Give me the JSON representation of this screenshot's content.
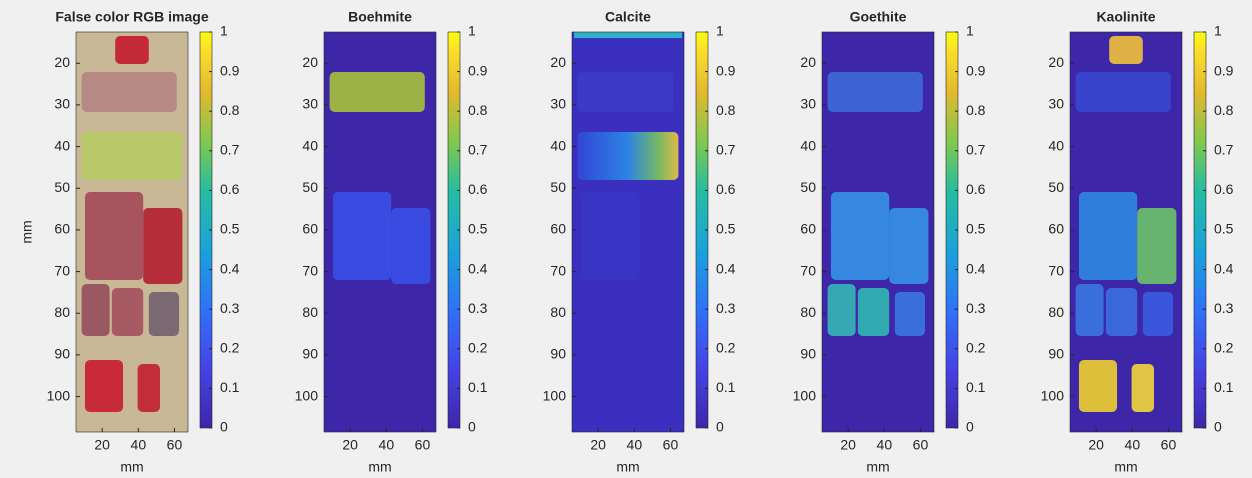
{
  "chart_data": [
    {
      "type": "image",
      "title": "False color RGB image",
      "xlabel": "mm",
      "ylabel": "mm",
      "xlim": [
        5.5,
        67.5
      ],
      "ylim": [
        12.5,
        108.5
      ],
      "xticks": [
        20,
        40,
        60
      ],
      "yticks": [
        20,
        30,
        40,
        50,
        60,
        70,
        80,
        90,
        100
      ],
      "clim": [
        0,
        1
      ],
      "cticks": [
        0,
        0.1,
        0.2,
        0.3,
        0.4,
        0.5,
        0.6,
        0.7,
        0.8,
        0.9,
        1
      ]
    },
    {
      "type": "image",
      "title": "Boehmite",
      "xlabel": "mm",
      "xlim": [
        5.5,
        67.5
      ],
      "ylim": [
        12.5,
        108.5
      ],
      "xticks": [
        20,
        40,
        60
      ],
      "yticks": [
        20,
        30,
        40,
        50,
        60,
        70,
        80,
        90,
        100
      ],
      "clim": [
        0,
        1
      ],
      "cticks": [
        0,
        0.1,
        0.2,
        0.3,
        0.4,
        0.5,
        0.6,
        0.7,
        0.8,
        0.9,
        1
      ]
    },
    {
      "type": "image",
      "title": "Calcite",
      "xlabel": "mm",
      "xlim": [
        5.5,
        67.5
      ],
      "ylim": [
        12.5,
        108.5
      ],
      "xticks": [
        20,
        40,
        60
      ],
      "yticks": [
        20,
        30,
        40,
        50,
        60,
        70,
        80,
        90,
        100
      ],
      "clim": [
        0,
        1
      ],
      "cticks": [
        0,
        0.1,
        0.2,
        0.3,
        0.4,
        0.5,
        0.6,
        0.7,
        0.8,
        0.9,
        1
      ]
    },
    {
      "type": "image",
      "title": "Goethite",
      "xlabel": "mm",
      "xlim": [
        5.5,
        67.5
      ],
      "ylim": [
        12.5,
        108.5
      ],
      "xticks": [
        20,
        40,
        60
      ],
      "yticks": [
        20,
        30,
        40,
        50,
        60,
        70,
        80,
        90,
        100
      ],
      "clim": [
        0,
        1
      ],
      "cticks": [
        0,
        0.1,
        0.2,
        0.3,
        0.4,
        0.5,
        0.6,
        0.7,
        0.8,
        0.9,
        1
      ]
    },
    {
      "type": "image",
      "title": "Kaolinite",
      "xlabel": "mm",
      "xlim": [
        5.5,
        67.5
      ],
      "ylim": [
        12.5,
        108.5
      ],
      "xticks": [
        20,
        40,
        60
      ],
      "yticks": [
        20,
        30,
        40,
        50,
        60,
        70,
        80,
        90,
        100
      ],
      "clim": [
        0,
        1
      ],
      "cticks": [
        0,
        0.1,
        0.2,
        0.3,
        0.4,
        0.5,
        0.6,
        0.7,
        0.8,
        0.9,
        1
      ]
    }
  ]
}
